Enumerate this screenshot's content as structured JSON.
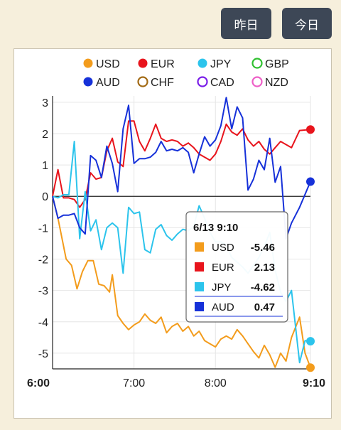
{
  "buttons": {
    "yesterday": "昨日",
    "today": "今日"
  },
  "chart_data": {
    "type": "line",
    "title": "",
    "xlabel": "",
    "ylabel": "",
    "ylim": [
      -5.5,
      3.2
    ],
    "xlim": [
      0,
      190
    ],
    "yticks": [
      3,
      2,
      1,
      0,
      -1,
      -2,
      -3,
      -4,
      -5
    ],
    "xticks": [
      {
        "label": "6:00",
        "x": 0,
        "bold": true
      },
      {
        "label": "7:00",
        "x": 60,
        "bold": false
      },
      {
        "label": "8:00",
        "x": 120,
        "bold": false
      },
      {
        "label": "9:10",
        "x": 190,
        "bold": true
      }
    ],
    "grid": true,
    "legend_position": "top",
    "legend": [
      {
        "name": "USD",
        "color": "#f39c1c",
        "filled": true
      },
      {
        "name": "EUR",
        "color": "#e8141c",
        "filled": true
      },
      {
        "name": "JPY",
        "color": "#2cc4ec",
        "filled": true
      },
      {
        "name": "GBP",
        "color": "#30c030",
        "filled": false
      },
      {
        "name": "AUD",
        "color": "#1631d9",
        "filled": true
      },
      {
        "name": "CHF",
        "color": "#a26a14",
        "filled": false
      },
      {
        "name": "CAD",
        "color": "#7a1ee8",
        "filled": false
      },
      {
        "name": "NZD",
        "color": "#ee5fc7",
        "filled": false
      }
    ],
    "series": [
      {
        "name": "USD",
        "color": "#f39c1c",
        "points": [
          [
            0,
            0
          ],
          [
            4,
            -0.7
          ],
          [
            10,
            -2
          ],
          [
            14,
            -2.2
          ],
          [
            18,
            -2.95
          ],
          [
            22,
            -2.4
          ],
          [
            26,
            -2.05
          ],
          [
            30,
            -2.05
          ],
          [
            34,
            -2.8
          ],
          [
            38,
            -2.85
          ],
          [
            42,
            -3.05
          ],
          [
            44,
            -2.5
          ],
          [
            48,
            -3.8
          ],
          [
            52,
            -4.05
          ],
          [
            56,
            -4.25
          ],
          [
            60,
            -4.1
          ],
          [
            64,
            -4.0
          ],
          [
            68,
            -3.75
          ],
          [
            72,
            -3.95
          ],
          [
            76,
            -4.05
          ],
          [
            80,
            -3.85
          ],
          [
            84,
            -4.35
          ],
          [
            88,
            -4.15
          ],
          [
            92,
            -4.05
          ],
          [
            96,
            -4.3
          ],
          [
            100,
            -4.15
          ],
          [
            104,
            -4.45
          ],
          [
            108,
            -4.3
          ],
          [
            112,
            -4.6
          ],
          [
            116,
            -4.7
          ],
          [
            120,
            -4.8
          ],
          [
            124,
            -4.55
          ],
          [
            128,
            -4.45
          ],
          [
            132,
            -4.55
          ],
          [
            136,
            -4.25
          ],
          [
            140,
            -4.45
          ],
          [
            144,
            -4.7
          ],
          [
            148,
            -4.95
          ],
          [
            152,
            -5.15
          ],
          [
            156,
            -4.75
          ],
          [
            160,
            -5.05
          ],
          [
            164,
            -5.45
          ],
          [
            168,
            -5.0
          ],
          [
            172,
            -5.25
          ],
          [
            176,
            -4.5
          ],
          [
            182,
            -3.85
          ],
          [
            186,
            -5.0
          ],
          [
            190,
            -5.46
          ]
        ]
      },
      {
        "name": "EUR",
        "color": "#e8141c",
        "points": [
          [
            0,
            0
          ],
          [
            4,
            0.85
          ],
          [
            8,
            -0.05
          ],
          [
            12,
            -0.05
          ],
          [
            16,
            -0.1
          ],
          [
            20,
            -0.35
          ],
          [
            24,
            -0.1
          ],
          [
            28,
            0.75
          ],
          [
            32,
            0.55
          ],
          [
            36,
            0.6
          ],
          [
            40,
            1.45
          ],
          [
            44,
            1.85
          ],
          [
            48,
            1.1
          ],
          [
            52,
            0.95
          ],
          [
            56,
            2.4
          ],
          [
            60,
            2.4
          ],
          [
            64,
            1.75
          ],
          [
            68,
            1.45
          ],
          [
            72,
            1.85
          ],
          [
            76,
            2.3
          ],
          [
            80,
            1.85
          ],
          [
            84,
            1.75
          ],
          [
            88,
            1.8
          ],
          [
            92,
            1.75
          ],
          [
            96,
            1.6
          ],
          [
            100,
            1.7
          ],
          [
            104,
            1.55
          ],
          [
            108,
            1.35
          ],
          [
            112,
            1.25
          ],
          [
            116,
            1.15
          ],
          [
            120,
            1.35
          ],
          [
            124,
            1.75
          ],
          [
            128,
            2.3
          ],
          [
            132,
            2.05
          ],
          [
            136,
            1.95
          ],
          [
            140,
            2.15
          ],
          [
            144,
            1.8
          ],
          [
            148,
            1.6
          ],
          [
            152,
            1.75
          ],
          [
            156,
            1.5
          ],
          [
            160,
            1.35
          ],
          [
            164,
            1.55
          ],
          [
            168,
            1.75
          ],
          [
            172,
            1.65
          ],
          [
            176,
            1.55
          ],
          [
            182,
            2.1
          ],
          [
            190,
            2.13
          ]
        ]
      },
      {
        "name": "JPY",
        "color": "#2cc4ec",
        "points": [
          [
            0,
            0
          ],
          [
            4,
            -0.05
          ],
          [
            8,
            0.05
          ],
          [
            12,
            0.05
          ],
          [
            16,
            1.75
          ],
          [
            20,
            -1.35
          ],
          [
            24,
            0.15
          ],
          [
            28,
            -1.1
          ],
          [
            32,
            -0.75
          ],
          [
            36,
            -1.7
          ],
          [
            40,
            -1.0
          ],
          [
            44,
            -0.85
          ],
          [
            48,
            -1.0
          ],
          [
            52,
            -2.45
          ],
          [
            56,
            -0.35
          ],
          [
            60,
            -0.55
          ],
          [
            64,
            -0.5
          ],
          [
            68,
            -1.7
          ],
          [
            72,
            -1.8
          ],
          [
            76,
            -1.05
          ],
          [
            80,
            -0.9
          ],
          [
            84,
            -1.25
          ],
          [
            88,
            -1.4
          ],
          [
            92,
            -1.2
          ],
          [
            96,
            -1.05
          ],
          [
            100,
            -1.1
          ],
          [
            104,
            -0.95
          ],
          [
            108,
            -0.3
          ],
          [
            112,
            -0.7
          ],
          [
            116,
            -1.15
          ],
          [
            120,
            -1.45
          ],
          [
            124,
            -1.45
          ],
          [
            128,
            -1.55
          ],
          [
            132,
            -1.95
          ],
          [
            136,
            -2.1
          ],
          [
            140,
            -2.25
          ],
          [
            144,
            -2.45
          ],
          [
            148,
            -2.2
          ],
          [
            152,
            -1.95
          ],
          [
            156,
            -1.6
          ],
          [
            160,
            -1.15
          ],
          [
            164,
            -2.35
          ],
          [
            168,
            -3.05
          ],
          [
            172,
            -3.35
          ],
          [
            176,
            -3.0
          ],
          [
            182,
            -5.3
          ],
          [
            186,
            -4.6
          ],
          [
            190,
            -4.62
          ]
        ]
      },
      {
        "name": "AUD",
        "color": "#1631d9",
        "points": [
          [
            0,
            0
          ],
          [
            4,
            -0.7
          ],
          [
            8,
            -0.6
          ],
          [
            12,
            -0.6
          ],
          [
            16,
            -0.55
          ],
          [
            20,
            -1.0
          ],
          [
            24,
            -1.2
          ],
          [
            28,
            1.3
          ],
          [
            32,
            1.15
          ],
          [
            36,
            0.6
          ],
          [
            40,
            1.6
          ],
          [
            44,
            1.05
          ],
          [
            48,
            0.15
          ],
          [
            52,
            2.15
          ],
          [
            56,
            2.9
          ],
          [
            60,
            1.05
          ],
          [
            64,
            1.2
          ],
          [
            68,
            1.2
          ],
          [
            72,
            1.25
          ],
          [
            76,
            1.4
          ],
          [
            80,
            1.75
          ],
          [
            84,
            1.45
          ],
          [
            88,
            1.5
          ],
          [
            92,
            1.45
          ],
          [
            96,
            1.55
          ],
          [
            100,
            1.4
          ],
          [
            104,
            0.75
          ],
          [
            108,
            1.35
          ],
          [
            112,
            1.9
          ],
          [
            116,
            1.6
          ],
          [
            120,
            1.8
          ],
          [
            124,
            2.25
          ],
          [
            128,
            3.15
          ],
          [
            132,
            2.15
          ],
          [
            136,
            2.85
          ],
          [
            140,
            2.5
          ],
          [
            144,
            0.2
          ],
          [
            148,
            0.55
          ],
          [
            152,
            1.15
          ],
          [
            156,
            0.85
          ],
          [
            160,
            1.85
          ],
          [
            164,
            0.45
          ],
          [
            168,
            0.95
          ],
          [
            172,
            -1.35
          ],
          [
            176,
            -0.85
          ],
          [
            182,
            -0.35
          ],
          [
            190,
            0.47
          ]
        ]
      }
    ],
    "tooltip": {
      "title": "6/13 9:10",
      "rows": [
        {
          "name": "USD",
          "value": "-5.46",
          "color": "#f39c1c"
        },
        {
          "name": "EUR",
          "value": "2.13",
          "color": "#e8141c"
        },
        {
          "name": "JPY",
          "value": "-4.62",
          "color": "#2cc4ec"
        },
        {
          "name": "AUD",
          "value": "0.47",
          "color": "#1631d9"
        }
      ]
    }
  }
}
